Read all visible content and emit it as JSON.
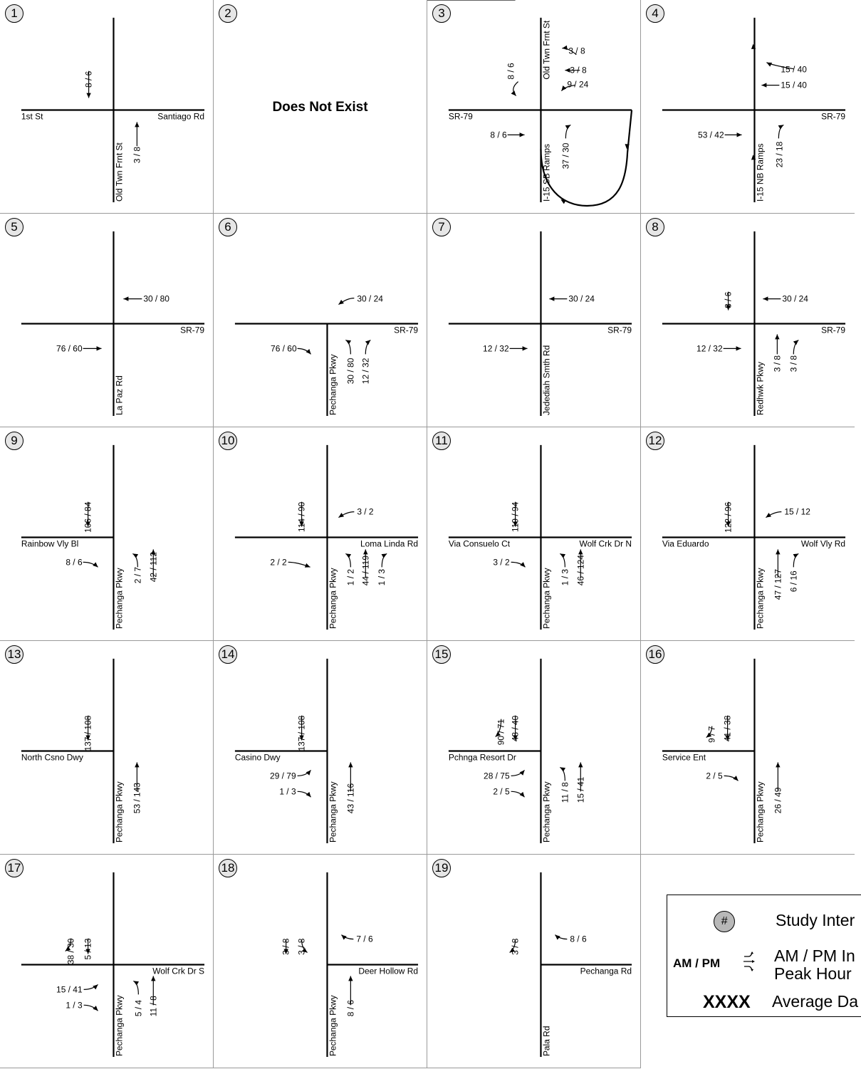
{
  "does_not_exist": "Does Not Exist",
  "intersections": [
    {
      "id": "1",
      "we": "1st St",
      "ee": "Santiago Rd",
      "ns": "Old Twn Frnt St",
      "flows": [
        "8 / 6",
        "3 / 8"
      ]
    },
    {
      "id": "2",
      "dne": true
    },
    {
      "id": "3",
      "we": "SR-79",
      "ns": "I-15 SB Ramps",
      "nn": "Old Twn Frnt St",
      "flows": [
        "8 / 6",
        "3 / 8",
        "3 / 8",
        "9 / 24",
        "8 / 6",
        "37 / 30"
      ]
    },
    {
      "id": "4",
      "ee": "SR-79",
      "ns": "I-15 NB Ramps",
      "flows": [
        "15 / 40",
        "15 / 40",
        "53 / 42",
        "23 / 18"
      ]
    },
    {
      "id": "5",
      "ee": "SR-79",
      "ns": "La Paz Rd",
      "flows": [
        "30 / 80",
        "76 / 60"
      ]
    },
    {
      "id": "6",
      "ee": "SR-79",
      "ns": "Pechanga Pkwy",
      "flows": [
        "30 / 24",
        "76 / 60",
        "30 / 80",
        "12 / 32"
      ]
    },
    {
      "id": "7",
      "ee": "SR-79",
      "ns": "Jedediah Smth Rd",
      "flows": [
        "30 / 24",
        "12 / 32"
      ]
    },
    {
      "id": "8",
      "ee": "SR-79",
      "ns": "Redhwk Pkwy",
      "flows": [
        "8 / 6",
        "30 / 24",
        "12 / 32",
        "3 / 8",
        "3 / 8"
      ]
    },
    {
      "id": "9",
      "we": "Rainbow Vly Bl",
      "ns": "Pechanga Pkwy",
      "flows": [
        "106 / 84",
        "8 / 6",
        "2 / 7",
        "42 / 112"
      ]
    },
    {
      "id": "10",
      "ee": "Loma Linda Rd",
      "ns": "Pechanga Pkwy",
      "flows": [
        "114 / 90",
        "3 / 2",
        "2 / 2",
        "1 / 2",
        "44 / 119",
        "1 / 3"
      ]
    },
    {
      "id": "11",
      "we": "Via Consuelo Ct",
      "ee": "Wolf Crk Dr N",
      "ns": "Pechanga Pkwy",
      "flows": [
        "119 / 94",
        "3 / 2",
        "1 / 3",
        "46 / 124"
      ]
    },
    {
      "id": "12",
      "we": "Via Eduardo",
      "ee": "Wolf Vly Rd",
      "ns": "Pechanga Pkwy",
      "flows": [
        "122 / 96",
        "15 / 12",
        "47 / 127",
        "6 / 16"
      ]
    },
    {
      "id": "13",
      "we": "North Csno Dwy",
      "ns": "Pechanga Pkwy",
      "flows": [
        "137 / 108",
        "53 / 143"
      ]
    },
    {
      "id": "14",
      "we": "Casino Dwy",
      "ns": "Pechanga Pkwy",
      "flows": [
        "137 / 108",
        "29 / 79",
        "1 / 3",
        "43 / 116"
      ]
    },
    {
      "id": "15",
      "we": "Pchnga Resort Dr",
      "ns": "Pechanga Pkwy",
      "flows": [
        "90 / 71",
        "48 / 40",
        "28 / 75",
        "2 / 5",
        "11 / 8",
        "15 / 41"
      ]
    },
    {
      "id": "16",
      "we": "Service Ent",
      "ns": "Pechanga Pkwy",
      "flows": [
        "9 / 7",
        "41 / 38",
        "2 / 5",
        "26 / 49"
      ]
    },
    {
      "id": "17",
      "ee": "Wolf Crk Dr S",
      "ns": "Pechanga Pkwy",
      "flows": [
        "38 / 30",
        "5 / 13",
        "15 / 41",
        "1 / 3",
        "5 / 4",
        "11 / 8"
      ]
    },
    {
      "id": "18",
      "ee": "Deer Hollow Rd",
      "ns": "Pechanga Pkwy",
      "flows": [
        "3 / 8",
        "3 / 8",
        "7 / 6",
        "8 / 6"
      ]
    },
    {
      "id": "19",
      "ee": "Pechanga Rd",
      "ns": "Pala Rd",
      "flows": [
        "3 / 8",
        "8 / 6"
      ]
    }
  ],
  "legend": {
    "badge": "#",
    "study": "Study Inter",
    "ampm": "AM / PM",
    "ampm_desc_1": "AM / PM In",
    "ampm_desc_2": "Peak Hour",
    "xxxx": "XXXX",
    "adt": "Average Da"
  }
}
